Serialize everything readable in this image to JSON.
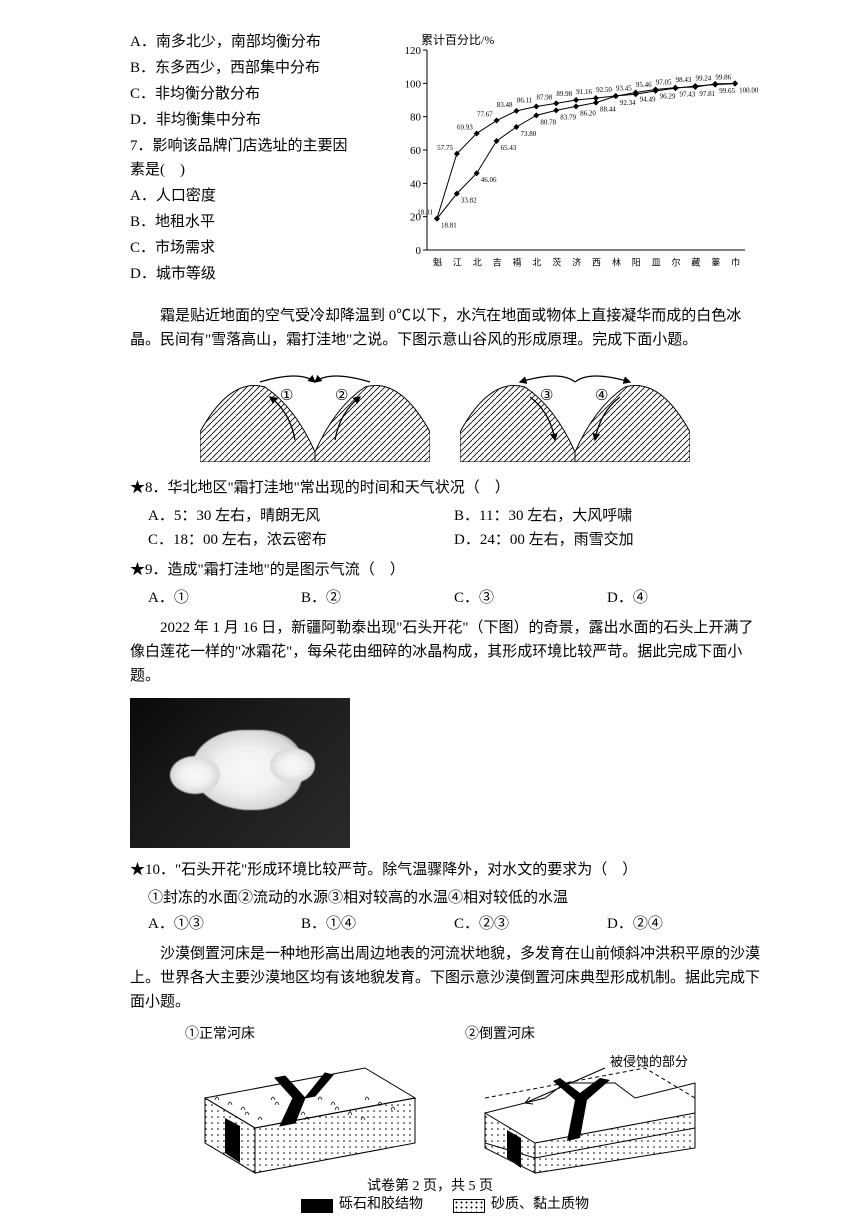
{
  "top": {
    "optA": "A．南多北少，南部均衡分布",
    "optB": "B．东多西少，西部集中分布",
    "optC": "C．非均衡分散分布",
    "optD": "D．非均衡集中分布",
    "q7": "7．影响该品牌门店选址的主要因素是(　)",
    "q7A": "A．人口密度",
    "q7B": "B．地租水平",
    "q7C": "C．市场需求",
    "q7D": "D．城市等级"
  },
  "chart": {
    "ylabel": "累计百分比/%",
    "ymin": 0,
    "ymax": 120,
    "ystep": 20,
    "upper": [
      18.81,
      57.75,
      69.93,
      77.67,
      83.48,
      86.11,
      87.98,
      89.98,
      91.16,
      92.5,
      93.45,
      95.46,
      97.05,
      98.43,
      99.24,
      99.86
    ],
    "lower": [
      18.81,
      33.82,
      46.06,
      65.43,
      73.8,
      80.78,
      83.79,
      86.2,
      88.44,
      92.34,
      94.49,
      96.29,
      97.43,
      97.81,
      99.65,
      100.0
    ],
    "categories": [
      "魁",
      "江",
      "北",
      "吉",
      "褙",
      "北",
      "茨",
      "济",
      "西",
      "林",
      "阳",
      "皿",
      "尔",
      "藏",
      "薹",
      "巾"
    ],
    "line_color": "#000",
    "marker": "diamond",
    "bg": "#fff"
  },
  "passage1": "霜是贴近地面的空气受冷却降温到 0℃以下，水汽在地面或物体上直接凝华而成的白色冰晶。民间有\"雪落高山，霜打洼地\"之说。下图示意山谷风的形成原理。完成下面小题。",
  "valley": {
    "labels_left": [
      "①",
      "②"
    ],
    "labels_right": [
      "③",
      "④"
    ]
  },
  "q8": {
    "stem": "★8．华北地区\"霜打洼地\"常出现的时间和天气状况（　）",
    "A": "A．5：30 左右，晴朗无风",
    "B": "B．11：30 左右，大风呼啸",
    "C": "C．18：00 左右，浓云密布",
    "D": "D．24：00 左右，雨雪交加"
  },
  "q9": {
    "stem": "★9．造成\"霜打洼地\"的是图示气流（　）",
    "A": "A．①",
    "B": "B．②",
    "C": "C．③",
    "D": "D．④"
  },
  "passage2": "2022 年 1 月 16 日，新疆阿勒泰出现\"石头开花\"（下图）的奇景，露出水面的石头上开满了像白莲花一样的\"冰霜花\"，每朵花由细碎的冰晶构成，其形成环境比较严苛。据此完成下面小题。",
  "q10": {
    "stem": "★10．\"石头开花\"形成环境比较严苛。除气温骤降外，对水文的要求为（　）",
    "sub": "①封冻的水面②流动的水源③相对较高的水温④相对较低的水温",
    "A": "A．①③",
    "B": "B．①④",
    "C": "C．②③",
    "D": "D．②④"
  },
  "passage3": "沙漠倒置河床是一种地形高出周边地表的河流状地貌，多发育在山前倾斜冲洪积平原的沙漠上。世界各大主要沙漠地区均有该地貌发育。下图示意沙漠倒置河床典型形成机制。据此完成下面小题。",
  "riverbed": {
    "left_label": "①正常河床",
    "right_label": "②倒置河床",
    "annotation": "被侵蚀的部分",
    "legend_solid": "砾石和胶结物",
    "legend_dots": "砂质、黏土质物"
  },
  "footer": "试卷第 2 页，共 5 页"
}
